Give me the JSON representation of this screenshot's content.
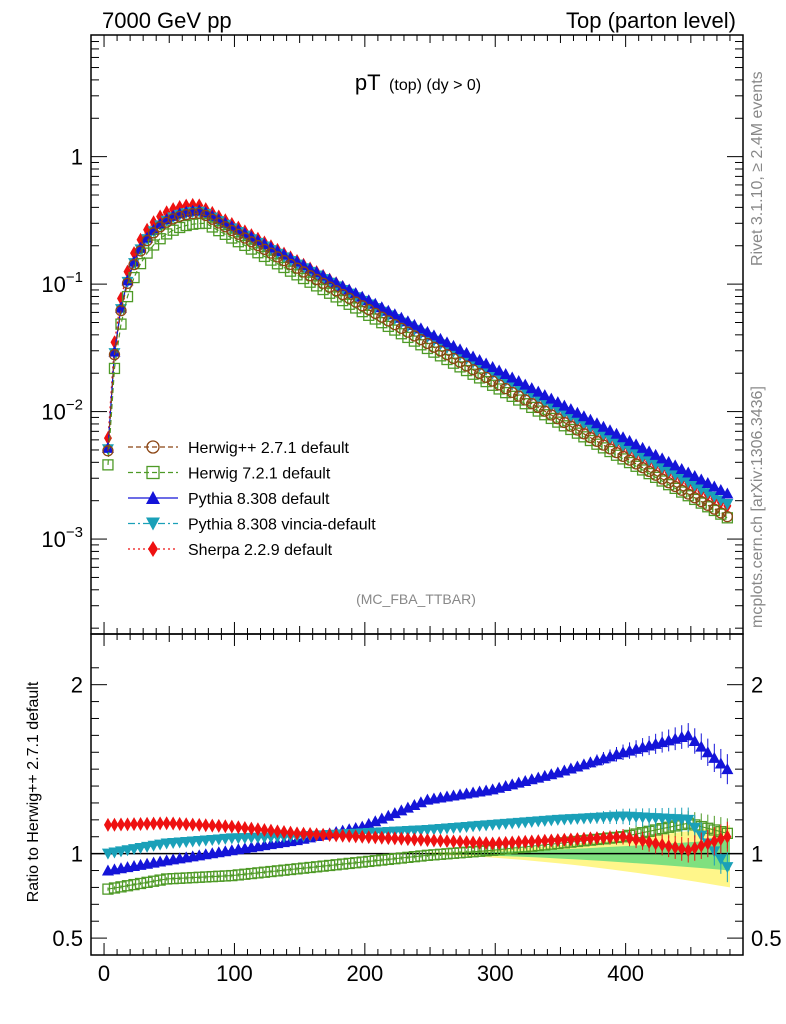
{
  "header": {
    "left": "7000 GeV pp",
    "right": "Top (parton level)"
  },
  "side_labels": {
    "rivet": "Rivet 3.1.10, ≥ 2.4M events",
    "mcplots": "mcplots.cern.ch [arXiv:1306.3436]"
  },
  "chart_data": [
    {
      "type": "line",
      "title_main": "pT",
      "title_sub": "(top) (dy > 0)",
      "analysis_label": "(MC_FBA_TTBAR)",
      "yscale": "log",
      "xlim": [
        -10,
        490
      ],
      "ylim": [
        0.00018,
        9
      ],
      "legend_position": "bottom-left",
      "y_tick_labels": [
        "10^-3",
        "10^-2",
        "10^-1",
        "1"
      ],
      "y_tick_values": [
        0.001,
        0.01,
        0.1,
        1
      ],
      "series": [
        {
          "name": "Herwig++ 2.7.1 default",
          "color": "#8B4513",
          "marker": "open-circle",
          "line": "dashed",
          "peak": 0.36,
          "xpeak": 75,
          "slope": 0.0136,
          "rise": 1.0,
          "ratio_ref": true
        },
        {
          "name": "Herwig 7.2.1 default",
          "color": "#4E9A26",
          "marker": "open-square",
          "line": "dashed",
          "peak": 0.3,
          "xpeak": 78,
          "slope": 0.0133,
          "rise": 1.0
        },
        {
          "name": "Pythia 8.308 default",
          "color": "#1414D8",
          "marker": "triangle-up",
          "line": "solid",
          "peak": 0.38,
          "xpeak": 75,
          "slope": 0.0127,
          "rise": 1.0
        },
        {
          "name": "Pythia 8.308 vincia-default",
          "color": "#1AA0B8",
          "marker": "triangle-down",
          "line": "dashdot",
          "peak": 0.37,
          "xpeak": 75,
          "slope": 0.0131,
          "rise": 1.0
        },
        {
          "name": "Sherpa 2.2.9 default",
          "color": "#EE1111",
          "marker": "diamond",
          "line": "dotted",
          "peak": 0.42,
          "xpeak": 72,
          "slope": 0.0134,
          "rise": 1.0
        }
      ]
    },
    {
      "type": "line",
      "ylabel": "Ratio to Herwig++ 2.7.1 default",
      "xlim": [
        -10,
        490
      ],
      "ylim": [
        0.4,
        2.3
      ],
      "y_tick_values": [
        0.5,
        1,
        2
      ],
      "y_tick_labels": [
        "0.5",
        "1",
        "2"
      ],
      "x_tick_values": [
        0,
        100,
        200,
        300,
        400
      ],
      "x_tick_labels": [
        "0",
        "100",
        "200",
        "300",
        "400"
      ],
      "band_colors": {
        "inner": "#7FE07F",
        "outer": "#FFF68A"
      },
      "ratio_series": [
        {
          "name": "Herwig 7.2.1 default",
          "color": "#4E9A26",
          "marker": "open-square",
          "x": [
            3,
            48,
            98,
            148,
            198,
            248,
            298,
            348,
            398,
            448,
            478
          ],
          "y": [
            0.79,
            0.85,
            0.87,
            0.91,
            0.95,
            0.99,
            1.02,
            1.06,
            1.1,
            1.18,
            1.12
          ]
        },
        {
          "name": "Pythia 8.308 default",
          "color": "#1414D8",
          "marker": "triangle-up",
          "x": [
            3,
            48,
            98,
            148,
            198,
            248,
            298,
            348,
            398,
            448,
            478
          ],
          "y": [
            0.9,
            0.96,
            1.02,
            1.08,
            1.16,
            1.32,
            1.38,
            1.48,
            1.6,
            1.7,
            1.5
          ]
        },
        {
          "name": "Pythia 8.308 vincia-default",
          "color": "#1AA0B8",
          "marker": "triangle-down",
          "x": [
            3,
            48,
            98,
            148,
            198,
            248,
            298,
            348,
            398,
            448,
            478
          ],
          "y": [
            1.0,
            1.06,
            1.09,
            1.1,
            1.12,
            1.14,
            1.17,
            1.2,
            1.22,
            1.2,
            0.92
          ]
        },
        {
          "name": "Sherpa 2.2.9 default",
          "color": "#EE1111",
          "marker": "diamond",
          "x": [
            3,
            48,
            98,
            148,
            198,
            248,
            298,
            348,
            398,
            448,
            478
          ],
          "y": [
            1.17,
            1.18,
            1.16,
            1.12,
            1.1,
            1.08,
            1.06,
            1.08,
            1.1,
            1.02,
            1.1
          ]
        }
      ]
    }
  ]
}
